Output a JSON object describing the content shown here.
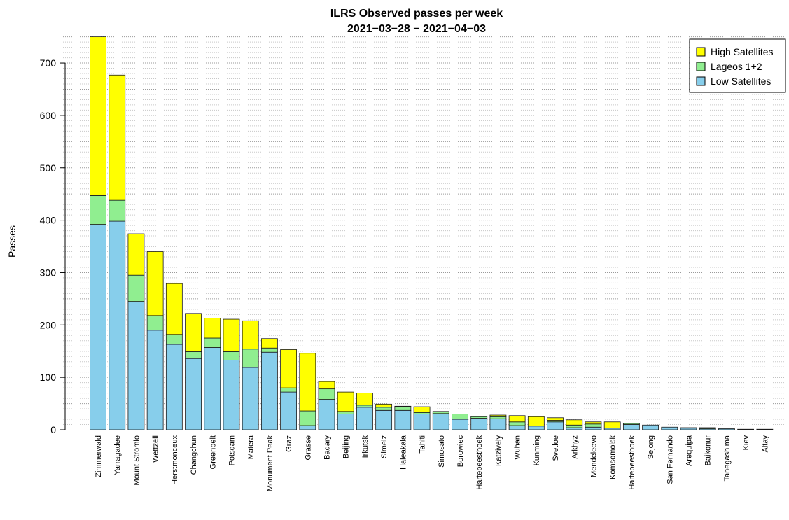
{
  "chart_data": {
    "type": "bar",
    "stacked": true,
    "title": "ILRS Observed passes per week",
    "subtitle": "2021−03−28 − 2021−04−03",
    "xlabel": "",
    "ylabel": "Passes",
    "ylim": [
      0,
      750
    ],
    "yticks": [
      0,
      100,
      200,
      300,
      400,
      500,
      600,
      700
    ],
    "grid": true,
    "legend_position": "top-right",
    "legend_order": [
      "High Satellites",
      "Lageos 1+2",
      "Low Satellites"
    ],
    "categories": [
      "Zimmerwald",
      "Yarragadee",
      "Mount Stromlo",
      "Wettzell",
      "Herstmonceux",
      "Changchun",
      "Greenbelt",
      "Potsdam",
      "Matera",
      "Monument Peak",
      "Graz",
      "Grasse",
      "Badary",
      "Beijing",
      "Irkutsk",
      "Simeiz",
      "Haleakala",
      "Tahiti",
      "Simosato",
      "Borowiec",
      "Hartebeesthoek",
      "Katzively",
      "Wuhan",
      "Kunming",
      "Svetloe",
      "Arkhyz",
      "Mendeleevo",
      "Komsomolsk",
      "Hartebeesthoek",
      "Sejong",
      "San Fernando",
      "Arequipa",
      "Baikonur",
      "Tanegashima",
      "Kiev",
      "Altay"
    ],
    "series": [
      {
        "name": "Low Satellites",
        "color": "#87ceeb",
        "values": [
          392,
          398,
          245,
          190,
          163,
          136,
          157,
          133,
          119,
          148,
          72,
          8,
          58,
          30,
          43,
          37,
          37,
          30,
          31,
          20,
          22,
          21,
          8,
          7,
          15,
          4,
          5,
          3,
          10,
          9,
          5,
          3,
          2,
          2,
          1,
          1
        ]
      },
      {
        "name": "Lageos 1+2",
        "color": "#90ee90",
        "values": [
          55,
          40,
          50,
          28,
          19,
          13,
          18,
          16,
          35,
          8,
          8,
          28,
          20,
          5,
          4,
          6,
          7,
          3,
          3,
          10,
          3,
          4,
          7,
          0,
          3,
          5,
          6,
          0,
          2,
          0,
          0,
          1,
          2,
          0,
          0,
          0
        ]
      },
      {
        "name": "High Satellites",
        "color": "#ffff00",
        "values": [
          303,
          239,
          79,
          122,
          97,
          73,
          38,
          62,
          54,
          18,
          73,
          110,
          14,
          37,
          23,
          6,
          1,
          11,
          1,
          0,
          0,
          3,
          12,
          18,
          5,
          10,
          4,
          12,
          0,
          0,
          0,
          0,
          0,
          0,
          0,
          0
        ]
      }
    ]
  }
}
